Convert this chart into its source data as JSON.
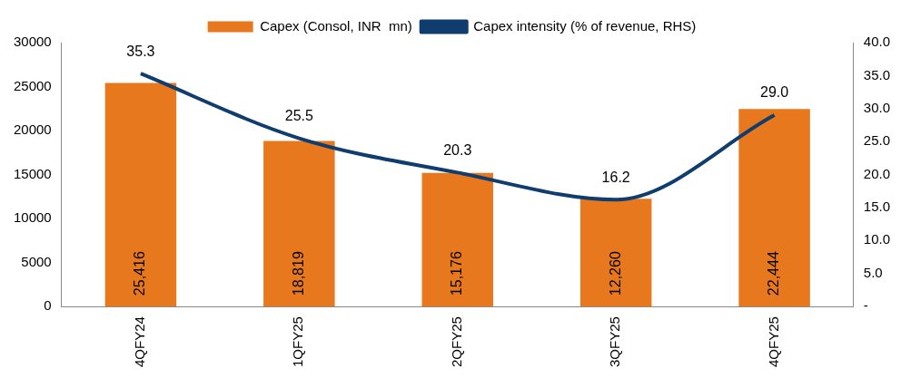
{
  "chart_data": {
    "type": "bar",
    "categories": [
      "4QFY24",
      "1QFY25",
      "2QFY25",
      "3QFY25",
      "4QFY25"
    ],
    "series": [
      {
        "name": "Capex (Consol, INR  mn)",
        "color": "#e8781e",
        "values": [
          25416,
          18819,
          15176,
          12260,
          22444
        ],
        "value_labels": [
          "25,416",
          "18,819",
          "15,176",
          "12,260",
          "22,444"
        ]
      },
      {
        "name": "Capex intensity (% of revenue, RHS)",
        "type": "line",
        "axis": "y2",
        "color": "#0f3d6e",
        "values": [
          35.3,
          25.5,
          20.3,
          16.2,
          29.0
        ],
        "value_labels": [
          "35.3",
          "25.5",
          "20.3",
          "16.2",
          "29.0"
        ]
      }
    ],
    "ylim": [
      0,
      30000
    ],
    "yticks": [
      0,
      5000,
      10000,
      15000,
      20000,
      25000,
      30000
    ],
    "y2lim": [
      0,
      40
    ],
    "y2ticks": [
      {
        "value": 0,
        "label": "-"
      },
      {
        "value": 5,
        "label": "5.0"
      },
      {
        "value": 10,
        "label": "10.0"
      },
      {
        "value": 15,
        "label": "15.0"
      },
      {
        "value": 20,
        "label": "20.0"
      },
      {
        "value": 25,
        "label": "25.0"
      },
      {
        "value": 30,
        "label": "30.0"
      },
      {
        "value": 35,
        "label": "35.0"
      },
      {
        "value": 40,
        "label": "40.0"
      }
    ],
    "legend": "top",
    "grid": false,
    "marker": "none",
    "line_style": "solid"
  }
}
